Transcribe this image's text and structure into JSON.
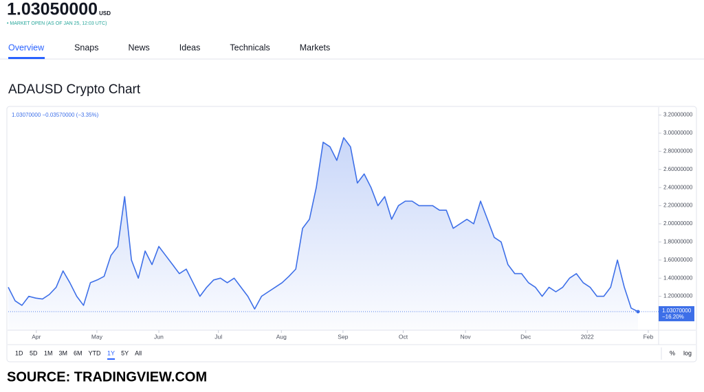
{
  "header": {
    "price": "1.03050000",
    "currency": "USD",
    "status": "• MARKET OPEN (AS OF JAN 25, 12:03 UTC)"
  },
  "tabs": [
    "Overview",
    "Snaps",
    "News",
    "Ideas",
    "Technicals",
    "Markets"
  ],
  "active_tab": 0,
  "chart_data": {
    "type": "line",
    "title": "ADAUSD Crypto Chart",
    "legend_text": "1.03070000 −0.03570000 (−3.35%)",
    "series": [
      {
        "name": "ADAUSD",
        "color": "#3d6fe8",
        "values": [
          1.3,
          1.15,
          1.1,
          1.2,
          1.18,
          1.17,
          1.22,
          1.3,
          1.48,
          1.35,
          1.2,
          1.1,
          1.35,
          1.38,
          1.42,
          1.65,
          1.75,
          2.3,
          1.6,
          1.4,
          1.7,
          1.55,
          1.75,
          1.65,
          1.55,
          1.45,
          1.5,
          1.35,
          1.2,
          1.3,
          1.38,
          1.4,
          1.35,
          1.4,
          1.3,
          1.2,
          1.06,
          1.2,
          1.25,
          1.3,
          1.35,
          1.42,
          1.5,
          1.95,
          2.05,
          2.4,
          2.9,
          2.85,
          2.7,
          2.95,
          2.85,
          2.45,
          2.55,
          2.4,
          2.2,
          2.3,
          2.05,
          2.2,
          2.25,
          2.25,
          2.2,
          2.2,
          2.2,
          2.15,
          2.15,
          1.95,
          2.0,
          2.05,
          2.0,
          2.25,
          2.05,
          1.85,
          1.8,
          1.55,
          1.45,
          1.45,
          1.35,
          1.3,
          1.2,
          1.3,
          1.25,
          1.3,
          1.4,
          1.45,
          1.35,
          1.3,
          1.2,
          1.2,
          1.3,
          1.6,
          1.3,
          1.07,
          1.0307
        ]
      }
    ],
    "xlim": [
      0,
      92
    ],
    "xticks": [
      {
        "value": 4.1,
        "label": "Apr"
      },
      {
        "value": 12.95,
        "label": "May"
      },
      {
        "value": 22.0,
        "label": "Jun"
      },
      {
        "value": 30.7,
        "label": "Jul"
      },
      {
        "value": 39.9,
        "label": "Aug"
      },
      {
        "value": 48.9,
        "label": "Sep"
      },
      {
        "value": 57.7,
        "label": "Oct"
      },
      {
        "value": 66.8,
        "label": "Nov"
      },
      {
        "value": 75.6,
        "label": "Dec"
      },
      {
        "value": 84.6,
        "label": "2022"
      },
      {
        "value": 93.5,
        "label": "Feb"
      }
    ],
    "ylim": [
      0.8,
      3.3
    ],
    "yticks": [
      {
        "value": 1.2,
        "label": "1.20000000"
      },
      {
        "value": 1.4,
        "label": "1.40000000"
      },
      {
        "value": 1.6,
        "label": "1.60000000"
      },
      {
        "value": 1.8,
        "label": "1.80000000"
      },
      {
        "value": 2.0,
        "label": "2.00000000"
      },
      {
        "value": 2.2,
        "label": "2.20000000"
      },
      {
        "value": 2.4,
        "label": "2.40000000"
      },
      {
        "value": 2.6,
        "label": "2.60000000"
      },
      {
        "value": 2.8,
        "label": "2.80000000"
      },
      {
        "value": 3.0,
        "label": "3.00000000"
      },
      {
        "value": 3.2,
        "label": "3.20000000"
      }
    ],
    "price_label": {
      "value": 1.0307,
      "label": "1.03070000",
      "change": "−16.20%"
    }
  },
  "ranges": [
    "1D",
    "5D",
    "1M",
    "3M",
    "6M",
    "YTD",
    "1Y",
    "5Y",
    "All"
  ],
  "active_range": 6,
  "scale_buttons": [
    "%",
    "log"
  ],
  "source": "SOURCE: TRADINGVIEW.COM"
}
